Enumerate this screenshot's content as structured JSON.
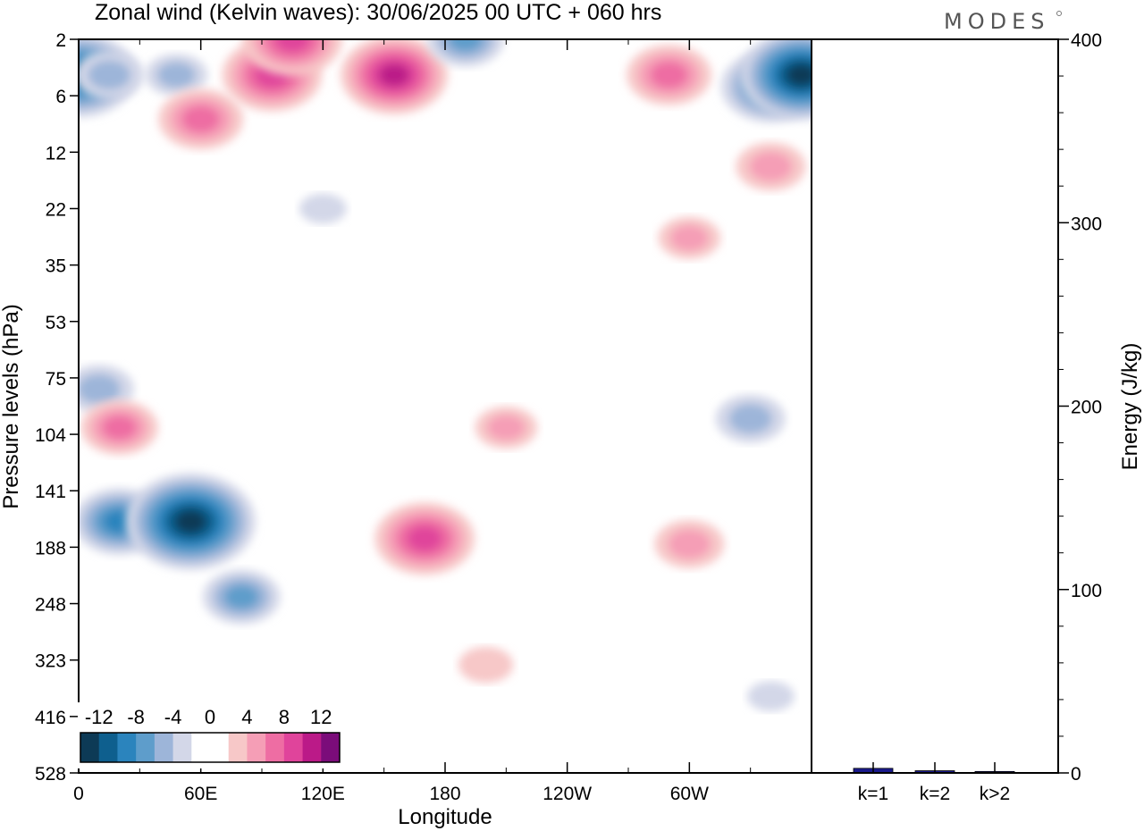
{
  "title": "Zonal wind (Kelvin waves):  30/06/2025  00 UTC  + 060 hrs",
  "logo": "MODES",
  "colors": {
    "neg6": "#0d3a56",
    "neg5": "#0e5f8e",
    "neg4": "#2b84bd",
    "neg3": "#5e9dcb",
    "neg2": "#9db5d9",
    "neg1": "#d3d7e8",
    "zero": "#ffffff",
    "pos1": "#f7c8c8",
    "pos2": "#f59eb6",
    "pos3": "#ee6da3",
    "pos4": "#e0449b",
    "pos5": "#bb1a88",
    "pos6": "#7b0c7a",
    "bar": "#1a1a8c"
  },
  "chart_data": [
    {
      "type": "heatmap",
      "title": "Zonal wind (Kelvin waves):  30/06/2025  00 UTC  + 060 hrs",
      "xlabel": "Longitude",
      "ylabel": "Pressure levels (hPa)",
      "x_ticks": [
        "0",
        "60E",
        "120E",
        "180",
        "120W",
        "60W"
      ],
      "y_ticks": [
        "2",
        "6",
        "12",
        "22",
        "35",
        "53",
        "75",
        "104",
        "141",
        "188",
        "248",
        "323",
        "416",
        "528"
      ],
      "colorbar": {
        "tick_labels": [
          "-12",
          "-8",
          "-4",
          "0",
          "4",
          "8",
          "12"
        ],
        "levels": [
          -14,
          -12,
          -10,
          -8,
          -6,
          -4,
          -2,
          2,
          4,
          6,
          8,
          10,
          12,
          14
        ]
      },
      "features": [
        {
          "lon": 0,
          "level": "4",
          "value": -11
        },
        {
          "lon": 15,
          "level": "4",
          "value": -5
        },
        {
          "lon": 48,
          "level": "4",
          "value": -4
        },
        {
          "lon": 95,
          "level": "4",
          "value": 9
        },
        {
          "lon": 155,
          "level": "4",
          "value": 10
        },
        {
          "lon": 190,
          "level": "2",
          "value": -6
        },
        {
          "lon": 290,
          "level": "4",
          "value": 7
        },
        {
          "lon": 340,
          "level": "5",
          "value": -9
        },
        {
          "lon": 355,
          "level": "4",
          "value": -12
        },
        {
          "lon": 60,
          "level": "8",
          "value": 7
        },
        {
          "lon": 105,
          "level": "2",
          "value": 9
        },
        {
          "lon": 340,
          "level": "14",
          "value": 5
        },
        {
          "lon": 300,
          "level": "28",
          "value": 4
        },
        {
          "lon": 120,
          "level": "22",
          "value": -2
        },
        {
          "lon": 10,
          "level": "80",
          "value": -5
        },
        {
          "lon": 20,
          "level": "100",
          "value": 6
        },
        {
          "lon": 210,
          "level": "100",
          "value": 4
        },
        {
          "lon": 330,
          "level": "95",
          "value": -5
        },
        {
          "lon": 20,
          "level": "165",
          "value": -8
        },
        {
          "lon": 55,
          "level": "165",
          "value": -13
        },
        {
          "lon": 80,
          "level": "240",
          "value": -6
        },
        {
          "lon": 170,
          "level": "180",
          "value": 9
        },
        {
          "lon": 300,
          "level": "185",
          "value": 5
        },
        {
          "lon": 200,
          "level": "330",
          "value": 3
        },
        {
          "lon": 340,
          "level": "380",
          "value": -2
        }
      ]
    },
    {
      "type": "bar",
      "ylabel": "Energy (J/kg)",
      "categories": [
        "k=1",
        "k=2",
        "k>2"
      ],
      "values": [
        2.5,
        1.2,
        0.8
      ],
      "ylim": [
        0,
        400
      ],
      "y_ticks": [
        "0",
        "100",
        "200",
        "300",
        "400"
      ]
    }
  ]
}
